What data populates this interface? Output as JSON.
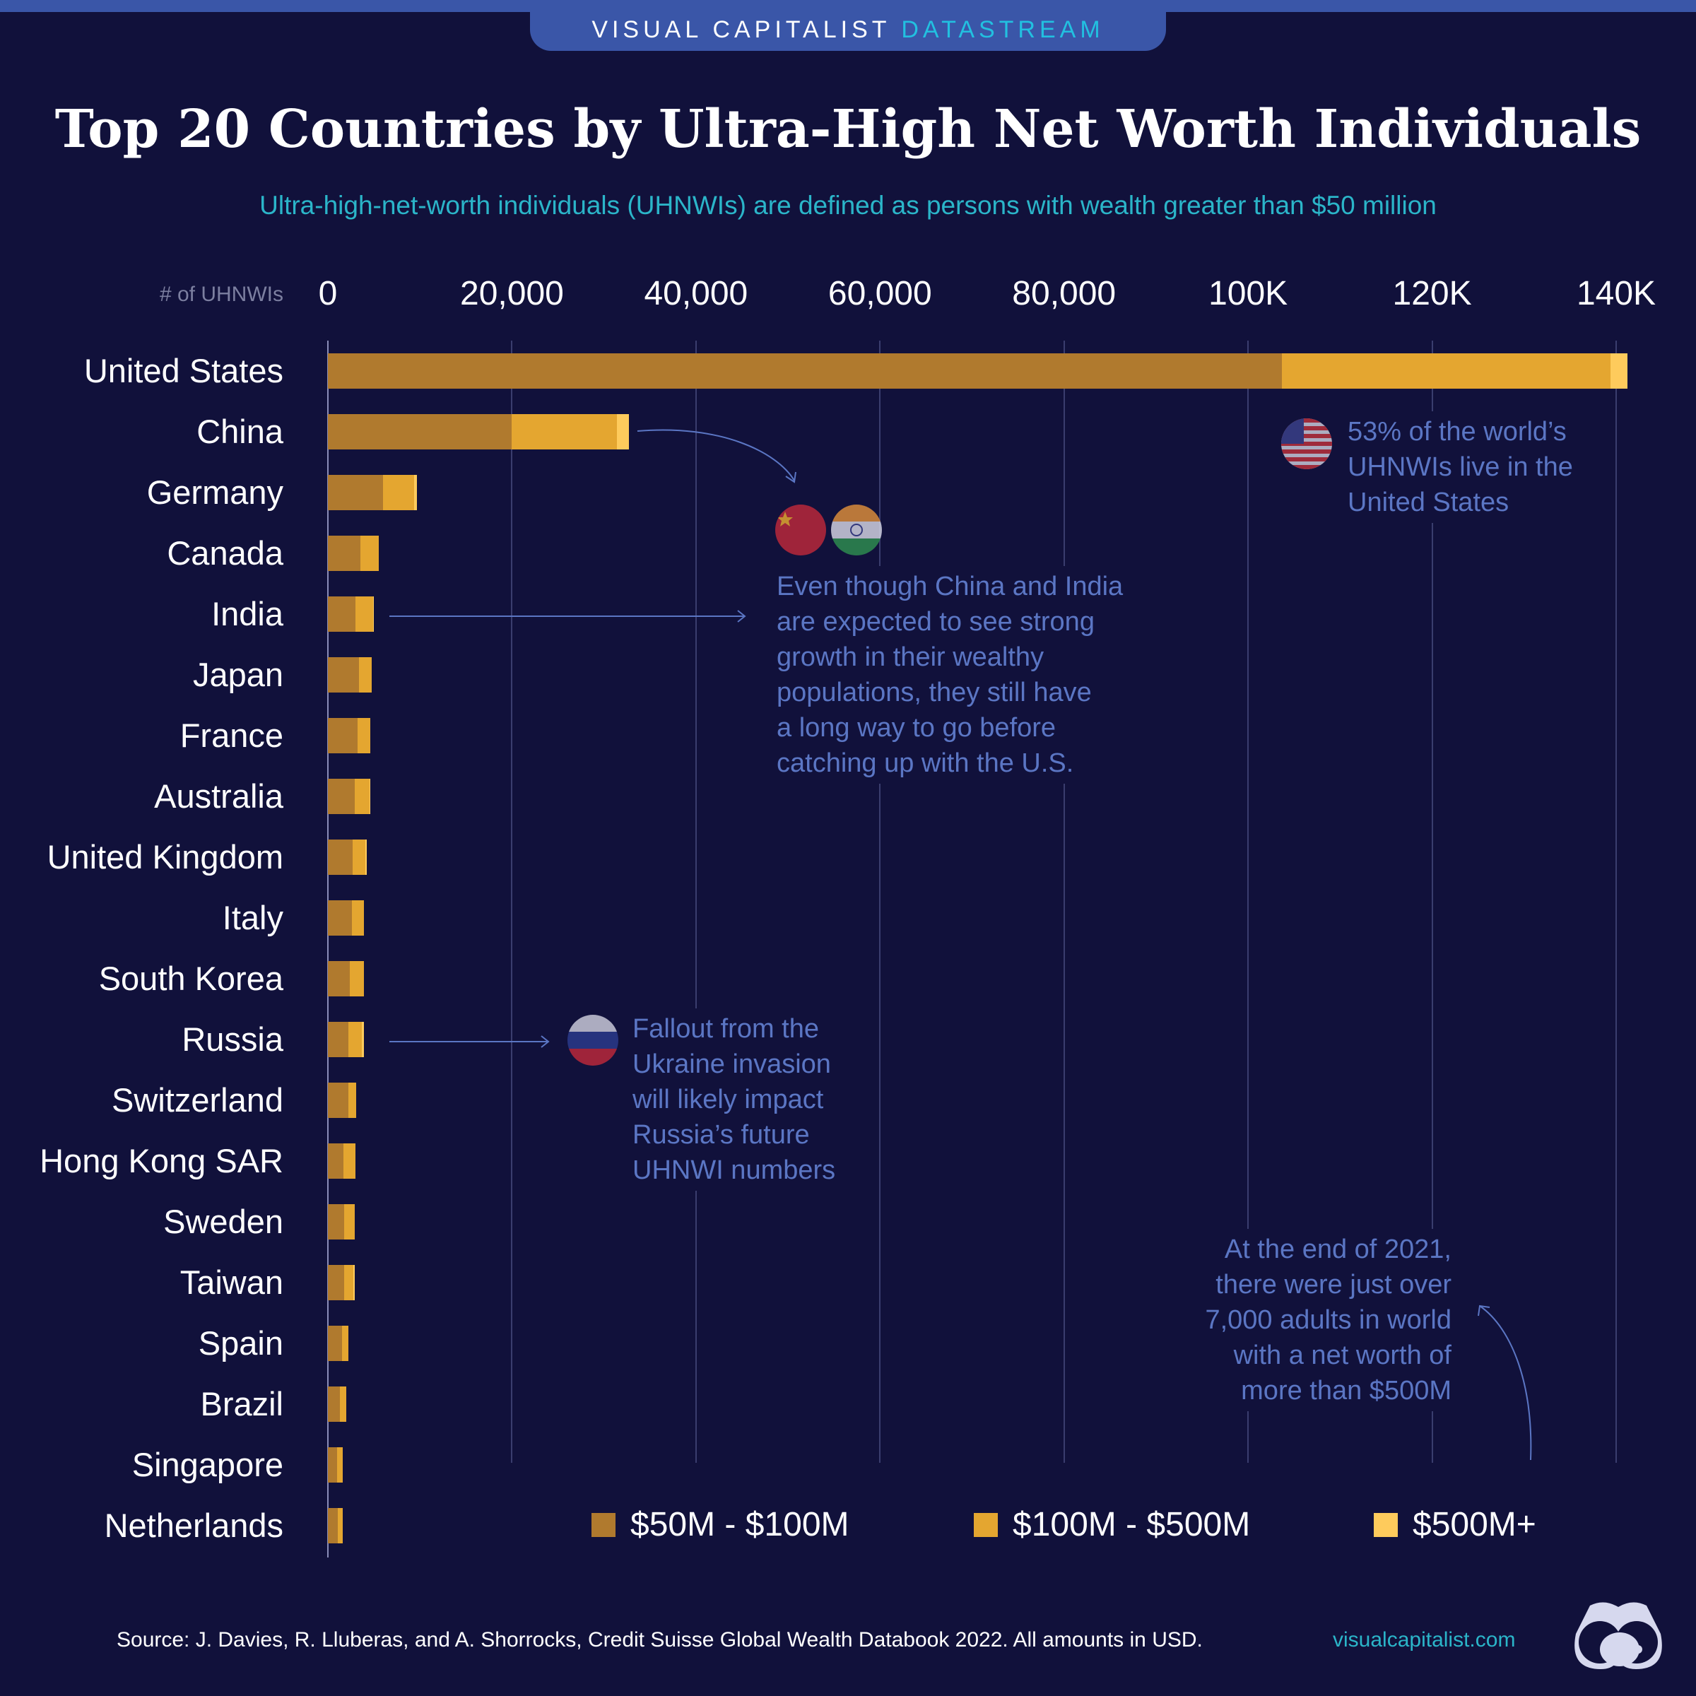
{
  "header": {
    "brand": "VISUAL CAPITALIST",
    "brand_accent": "DATASTREAM"
  },
  "title": "Top 20 Countries by Ultra-High Net Worth Individuals",
  "subtitle": "Ultra-high-net-worth individuals (UHNWIs) are defined as persons with wealth greater than $50 million",
  "colors": {
    "background": "#11113b",
    "seg_50_100": "#b07a2e",
    "seg_100_500": "#e4a630",
    "seg_500_plus": "#fecb5c",
    "annotation": "#5b76c4",
    "accent": "#2bb5c9"
  },
  "chart_data": {
    "type": "bar",
    "orientation": "horizontal",
    "stacked": true,
    "xlabel": "# of UHNWIs",
    "xlim": [
      0,
      140000
    ],
    "grid": true,
    "legend_placement": "bottom",
    "tick_values": [
      0,
      20000,
      40000,
      60000,
      80000,
      100000,
      120000,
      140000
    ],
    "tick_labels": [
      "0",
      "20,000",
      "40,000",
      "60,000",
      "80,000",
      "100K",
      "120K",
      "140K"
    ],
    "categories": [
      "United States",
      "China",
      "Germany",
      "Canada",
      "India",
      "Japan",
      "France",
      "Australia",
      "United Kingdom",
      "Italy",
      "South Korea",
      "Russia",
      "Switzerland",
      "Hong Kong SAR",
      "Sweden",
      "Taiwan",
      "Spain",
      "Brazil",
      "Singapore",
      "Netherlands"
    ],
    "series": [
      {
        "name": "$50M - $100M",
        "values": [
          103700,
          20000,
          6000,
          3500,
          3000,
          3400,
          3200,
          2900,
          2700,
          2600,
          2400,
          2200,
          2200,
          1700,
          1800,
          1800,
          1500,
          1300,
          1000,
          1100
        ]
      },
      {
        "name": "$100M - $500M",
        "values": [
          35700,
          11400,
          3400,
          2000,
          1900,
          1400,
          1400,
          1600,
          1400,
          1300,
          1500,
          1500,
          900,
          1300,
          1100,
          1000,
          700,
          700,
          600,
          500
        ]
      },
      {
        "name": "$500M+",
        "values": [
          1800,
          1300,
          300,
          0,
          100,
          0,
          0,
          100,
          100,
          0,
          0,
          200,
          0,
          0,
          0,
          100,
          0,
          0,
          0,
          0
        ]
      }
    ]
  },
  "annotations": {
    "us": [
      "53% of the world’s",
      "UHNWIs live in the",
      "United States"
    ],
    "china_india": [
      "Even though China and India",
      "are expected to see strong",
      "growth in their wealthy",
      "populations, they still have",
      "a long way to go before",
      "catching up with the U.S."
    ],
    "russia": [
      "Fallout from the",
      "Ukraine invasion",
      "will likely impact",
      "Russia’s future",
      "UHNWI numbers"
    ],
    "world": [
      "At the end of 2021,",
      "there were just over",
      "7,000 adults in world",
      "with a net worth of",
      "more than $500M"
    ]
  },
  "footer": {
    "source": "Source: J. Davies, R. Lluberas, and A. Shorrocks, Credit Suisse Global Wealth Databook 2022. All amounts in USD.",
    "site": "visualcapitalist.com"
  }
}
